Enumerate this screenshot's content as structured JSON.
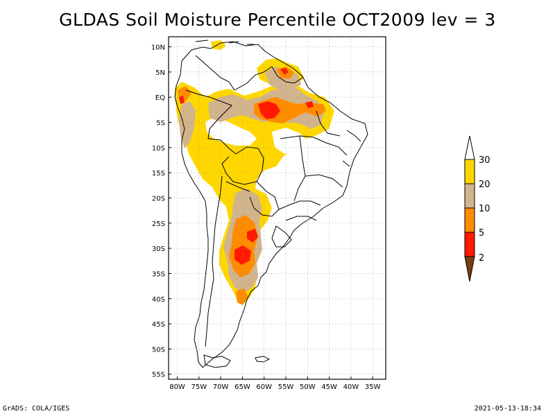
{
  "title": "GLDAS Soil Moisture Percentile OCT2009 lev = 3",
  "footer": {
    "left": "GrADS: COLA/IGES",
    "right": "2021-05-13-18:34"
  },
  "map": {
    "lat_labels": [
      "10N",
      "5N",
      "EQ",
      "5S",
      "10S",
      "15S",
      "20S",
      "25S",
      "30S",
      "35S",
      "40S",
      "45S",
      "50S",
      "55S"
    ],
    "lat_values": [
      10,
      5,
      0,
      -5,
      -10,
      -15,
      -20,
      -25,
      -30,
      -35,
      -40,
      -45,
      -50,
      -55
    ],
    "lon_labels": [
      "80W",
      "75W",
      "70W",
      "65W",
      "60W",
      "55W",
      "50W",
      "45W",
      "40W",
      "35W"
    ],
    "lon_values": [
      -80,
      -75,
      -70,
      -65,
      -60,
      -55,
      -50,
      -45,
      -40,
      -35
    ],
    "lon_range": [
      -82,
      -32
    ],
    "lat_range": [
      -56,
      12
    ],
    "grid": true
  },
  "colorbar": {
    "levels": [
      "2",
      "5",
      "10",
      "20",
      "30"
    ],
    "colors": [
      "#7a3d10",
      "#ff1a00",
      "#ff8c00",
      "#d2b48c",
      "#ffd700",
      "#ffffff"
    ]
  }
}
